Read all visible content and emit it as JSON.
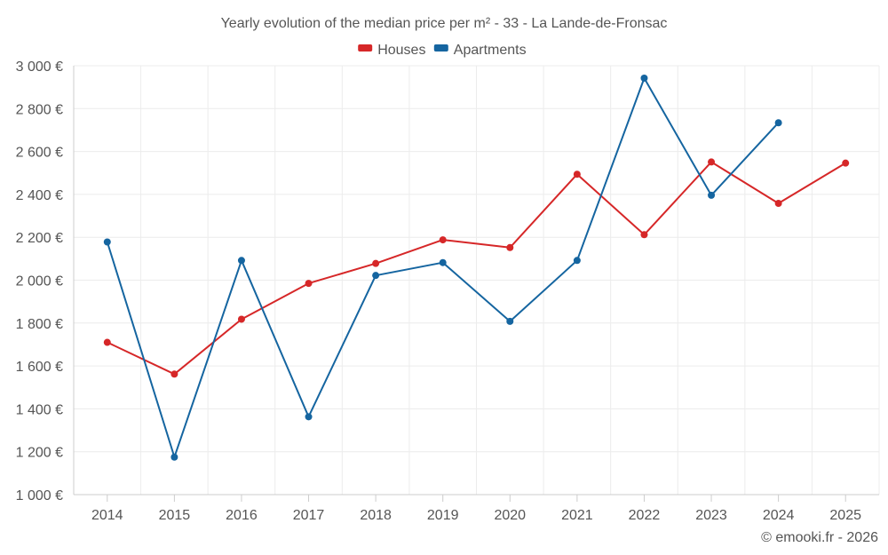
{
  "chart_data": {
    "type": "line",
    "title": "Yearly evolution of the median price per m² - 33 - La Lande-de-Fronsac",
    "categories": [
      "2014",
      "2015",
      "2016",
      "2017",
      "2018",
      "2019",
      "2020",
      "2021",
      "2022",
      "2023",
      "2024",
      "2025"
    ],
    "series": [
      {
        "name": "Houses",
        "color": "#d62728",
        "values": [
          1710,
          1562,
          1818,
          1985,
          2078,
          2188,
          2152,
          2494,
          2212,
          2551,
          2358,
          2546
        ]
      },
      {
        "name": "Apartments",
        "color": "#1565a0",
        "values": [
          2178,
          1175,
          2092,
          1363,
          2022,
          2082,
          1808,
          2092,
          2942,
          2396,
          2734,
          null
        ]
      }
    ],
    "ylim": [
      1000,
      3000
    ],
    "yticks": [
      1000,
      1200,
      1400,
      1600,
      1800,
      2000,
      2200,
      2400,
      2600,
      2800,
      3000
    ],
    "ytick_labels": [
      "1 000 €",
      "1 200 €",
      "1 400 €",
      "1 600 €",
      "1 800 €",
      "2 000 €",
      "2 200 €",
      "2 400 €",
      "2 600 €",
      "2 800 €",
      "3 000 €"
    ],
    "xlabel": "",
    "ylabel": "",
    "grid": true,
    "legend_position": "top-center"
  },
  "credit": "© emooki.fr - 2026"
}
